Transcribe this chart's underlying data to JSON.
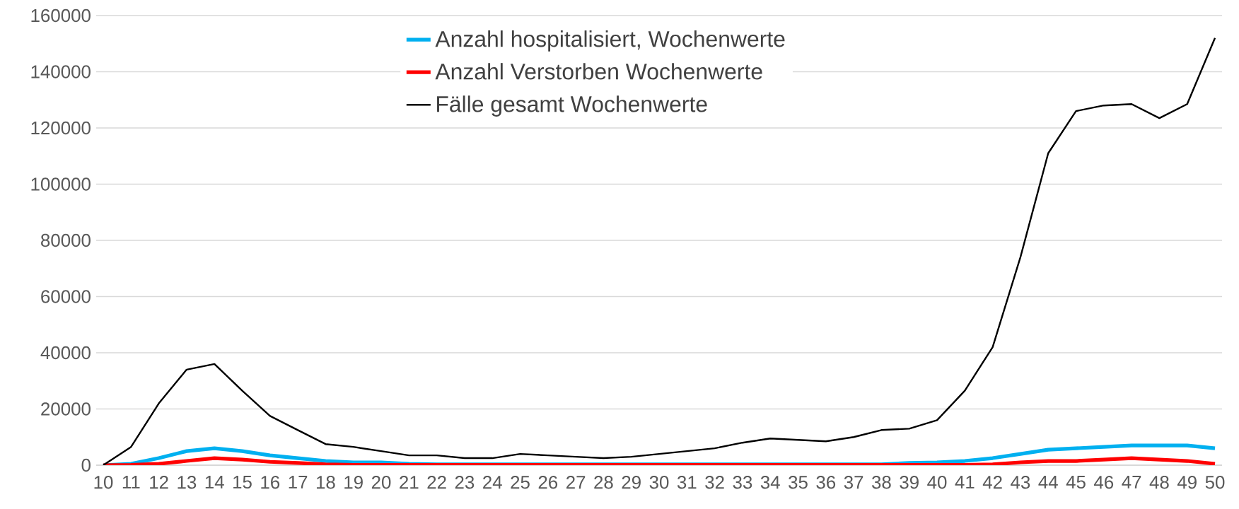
{
  "chart_data": {
    "type": "line",
    "categories": [
      "10",
      "11",
      "12",
      "13",
      "14",
      "15",
      "16",
      "17",
      "18",
      "19",
      "20",
      "21",
      "22",
      "23",
      "24",
      "25",
      "26",
      "27",
      "28",
      "29",
      "30",
      "31",
      "32",
      "33",
      "34",
      "35",
      "36",
      "37",
      "38",
      "39",
      "40",
      "41",
      "42",
      "43",
      "44",
      "45",
      "46",
      "47",
      "48",
      "49",
      "50"
    ],
    "series": [
      {
        "name": "Anzahl hospitalisiert, Wochenwerte",
        "color": "#00b0f0",
        "values": [
          0,
          500,
          2500,
          5000,
          6000,
          5000,
          3500,
          2500,
          1500,
          1000,
          1000,
          500,
          300,
          300,
          300,
          300,
          300,
          300,
          300,
          300,
          300,
          300,
          300,
          300,
          300,
          300,
          300,
          300,
          300,
          800,
          1000,
          1500,
          2500,
          4000,
          5500,
          6000,
          6500,
          7000,
          7000,
          7000,
          6000
        ]
      },
      {
        "name": "Anzahl Verstorben Wochenwerte",
        "color": "#ff0000",
        "values": [
          0,
          100,
          500,
          1500,
          2500,
          2000,
          1200,
          800,
          300,
          100,
          100,
          100,
          100,
          100,
          100,
          100,
          100,
          100,
          100,
          100,
          100,
          100,
          100,
          100,
          100,
          100,
          100,
          100,
          100,
          100,
          100,
          100,
          300,
          1000,
          1500,
          1500,
          2000,
          2500,
          2000,
          1500,
          500
        ]
      },
      {
        "name": "Fälle gesamt Wochenwerte",
        "color": "#000000",
        "values": [
          0,
          6500,
          22000,
          34000,
          36000,
          26500,
          17500,
          12500,
          7500,
          6500,
          5000,
          3500,
          3500,
          2500,
          2500,
          4000,
          3500,
          3000,
          2500,
          3000,
          4000,
          5000,
          6000,
          8000,
          9500,
          9000,
          8500,
          10000,
          12500,
          13000,
          16000,
          26500,
          42000,
          74000,
          111000,
          126000,
          128000,
          128500,
          123500,
          128500,
          152000
        ]
      }
    ],
    "ylim": [
      0,
      160000
    ],
    "yticks": [
      0,
      20000,
      40000,
      60000,
      80000,
      100000,
      120000,
      140000,
      160000
    ],
    "grid": "y",
    "legend": "top",
    "marker": "none",
    "line_style": "solid"
  }
}
